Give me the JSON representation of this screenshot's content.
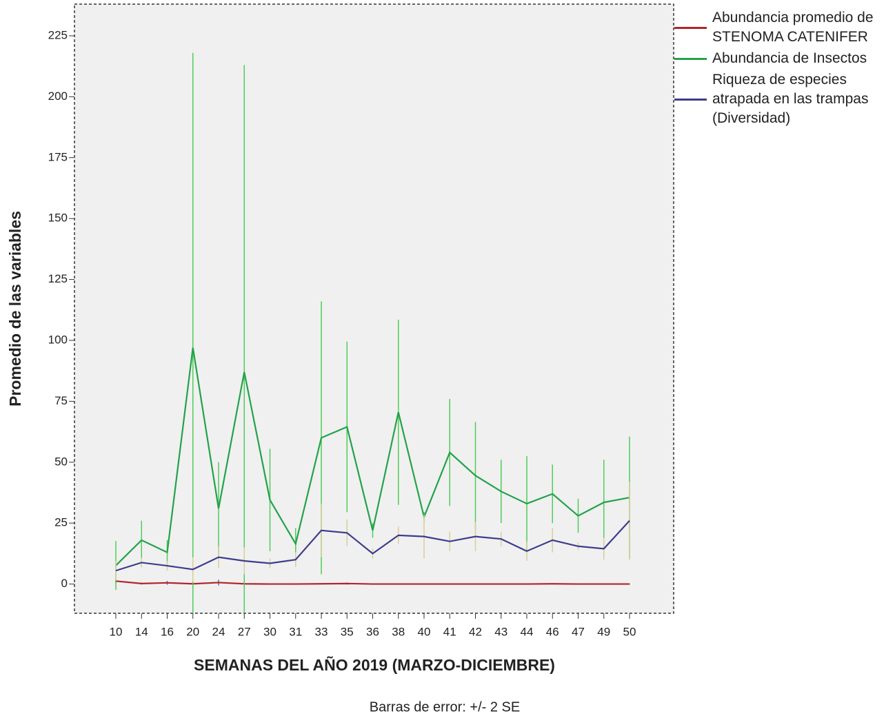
{
  "chart_data": {
    "type": "line",
    "xlabel": "SEMANAS DEL AÑO 2019 (MARZO-DICIEMBRE)",
    "ylabel": "Promedio de las variables",
    "note": "Barras de error: +/- 2 SE",
    "categories": [
      "10",
      "14",
      "16",
      "20",
      "24",
      "27",
      "30",
      "31",
      "33",
      "35",
      "36",
      "38",
      "40",
      "41",
      "42",
      "43",
      "44",
      "46",
      "47",
      "49",
      "50"
    ],
    "ylim": [
      -12,
      238
    ],
    "yticks": [
      0,
      25,
      50,
      75,
      100,
      125,
      150,
      175,
      200,
      225
    ],
    "grid": false,
    "legend": "right",
    "series": [
      {
        "name": "Abundancia promedio de STENOMA CATENIFER",
        "color": "#b2242a",
        "error_color": "#5b6cc0",
        "values": [
          1.2,
          0.2,
          0.5,
          0.1,
          0.6,
          0.1,
          0,
          0,
          0.1,
          0.2,
          0,
          0,
          0,
          0,
          0,
          0,
          0,
          0.1,
          0,
          0,
          0
        ],
        "errors": [
          0.8,
          0.4,
          0.8,
          0.3,
          1.2,
          0.3,
          0.2,
          0.2,
          0.3,
          0.4,
          0.2,
          0.2,
          0.2,
          0.2,
          0.2,
          0.2,
          0.2,
          0.3,
          0.2,
          0.2,
          0.2
        ]
      },
      {
        "name": "Abundancia de Insectos",
        "color": "#22a24a",
        "error_color": "#4fcc57",
        "values": [
          7.6,
          18,
          13,
          97,
          31,
          87,
          34.5,
          16.5,
          60,
          64.5,
          22,
          70.5,
          27.5,
          54,
          44.5,
          38,
          33,
          37,
          28,
          33.5,
          35.5
        ],
        "errors": [
          10,
          8,
          5,
          121,
          19,
          126,
          21,
          6.5,
          56,
          35,
          3,
          38,
          2,
          22,
          22,
          13,
          19.5,
          12,
          7,
          17.5,
          25
        ]
      },
      {
        "name": "Riqueza de especies atrapada en las trampas (Diversidad)",
        "color": "#3c3c8e",
        "error_color": "#d6cf9a",
        "values": [
          5.5,
          8.8,
          7.5,
          6,
          11,
          9.5,
          8.5,
          10,
          22,
          21,
          12.5,
          20,
          19.5,
          17.5,
          19.5,
          18.5,
          13.5,
          18,
          15.5,
          14.5,
          26
        ],
        "errors": [
          4,
          2,
          2,
          5,
          4.5,
          5.5,
          2,
          3,
          11,
          5.5,
          2,
          3.5,
          9,
          4,
          6,
          3,
          4,
          5,
          1.5,
          4.5,
          16
        ]
      }
    ]
  }
}
